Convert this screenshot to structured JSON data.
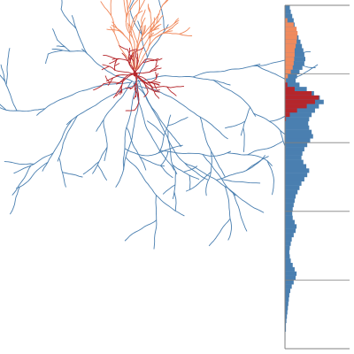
{
  "colors": {
    "axon": "#4a7fb0",
    "dendrite": "#b5262b",
    "apical_dendrite": "#f08a5d",
    "frame": "#808080",
    "background": "#ffffff"
  },
  "profile": {
    "bins": 4,
    "density_axon": [
      0.1,
      0.12,
      0.15,
      0.18,
      0.2,
      0.22,
      0.25,
      0.28,
      0.32,
      0.35,
      0.38,
      0.4,
      0.42,
      0.4,
      0.36,
      0.3,
      0.25,
      0.22,
      0.3,
      0.45,
      0.6,
      0.72,
      0.8,
      0.7,
      0.62,
      0.55,
      0.5,
      0.48,
      0.5,
      0.55,
      0.58,
      0.52,
      0.46,
      0.4,
      0.36,
      0.34,
      0.38,
      0.44,
      0.5,
      0.46,
      0.4,
      0.34,
      0.3,
      0.26,
      0.22,
      0.2,
      0.18,
      0.16,
      0.15,
      0.16,
      0.2,
      0.24,
      0.22,
      0.18,
      0.14,
      0.12,
      0.1,
      0.09,
      0.1,
      0.12,
      0.16,
      0.2,
      0.24,
      0.22,
      0.18,
      0.14,
      0.11,
      0.09,
      0.08,
      0.07,
      0.06,
      0.05,
      0.04,
      0.03,
      0.02,
      0.02,
      0.01,
      0.01,
      0.0,
      0.0
    ],
    "density_dendrite": [
      0.0,
      0.0,
      0.0,
      0.0,
      0.0,
      0.0,
      0.0,
      0.0,
      0.0,
      0.0,
      0.0,
      0.0,
      0.0,
      0.0,
      0.0,
      0.0,
      0.0,
      0.0,
      0.05,
      0.2,
      0.55,
      0.7,
      0.62,
      0.45,
      0.25,
      0.1,
      0.02,
      0.0,
      0.0,
      0.0,
      0.0,
      0.0,
      0.0,
      0.0,
      0.0,
      0.0,
      0.0,
      0.0,
      0.0,
      0.0,
      0.0,
      0.0,
      0.0,
      0.0,
      0.0,
      0.0,
      0.0,
      0.0,
      0.0,
      0.0,
      0.0,
      0.0,
      0.0,
      0.0,
      0.0,
      0.0,
      0.0,
      0.0,
      0.0,
      0.0,
      0.0,
      0.0,
      0.0,
      0.0,
      0.0,
      0.0,
      0.0,
      0.0,
      0.0,
      0.0,
      0.0,
      0.0,
      0.0,
      0.0,
      0.0,
      0.0,
      0.0,
      0.0,
      0.0,
      0.0
    ],
    "density_apical": [
      0.0,
      0.0,
      0.0,
      0.05,
      0.18,
      0.24,
      0.26,
      0.25,
      0.24,
      0.22,
      0.2,
      0.2,
      0.19,
      0.18,
      0.16,
      0.12,
      0.06,
      0.02,
      0.0,
      0.0,
      0.0,
      0.0,
      0.0,
      0.0,
      0.0,
      0.0,
      0.0,
      0.0,
      0.0,
      0.0,
      0.0,
      0.0,
      0.0,
      0.0,
      0.0,
      0.0,
      0.0,
      0.0,
      0.0,
      0.0,
      0.0,
      0.0,
      0.0,
      0.0,
      0.0,
      0.0,
      0.0,
      0.0,
      0.0,
      0.0,
      0.0,
      0.0,
      0.0,
      0.0,
      0.0,
      0.0,
      0.0,
      0.0,
      0.0,
      0.0,
      0.0,
      0.0,
      0.0,
      0.0,
      0.0,
      0.0,
      0.0,
      0.0,
      0.0,
      0.0,
      0.0,
      0.0,
      0.0,
      0.0,
      0.0,
      0.0,
      0.0,
      0.0,
      0.0,
      0.0
    ]
  }
}
